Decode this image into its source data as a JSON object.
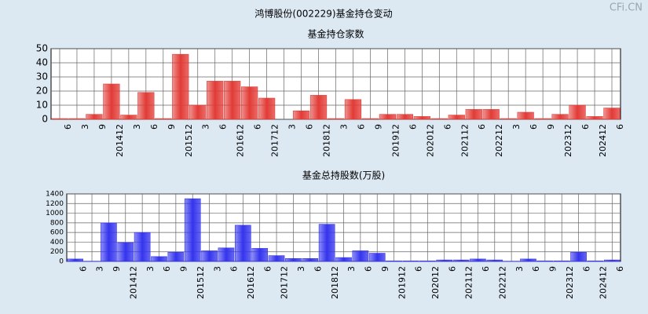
{
  "title": "鸿博股份(002229)基金持仓变动",
  "watermark": "CFi.CN",
  "chart_data": [
    {
      "type": "bar",
      "title": "基金持仓家数",
      "color": "#e23b36",
      "grid": true,
      "categories": [
        "6",
        "3",
        "9",
        "201412",
        "3",
        "6",
        "9",
        "201512",
        "3",
        "6",
        "201612",
        "6",
        "201712",
        "3",
        "6",
        "201812",
        "3",
        "6",
        "9",
        "201912",
        "6",
        "202012",
        "6",
        "202112",
        "6",
        "202212",
        "3",
        "6",
        "9",
        "202312",
        "6",
        "202412",
        "6"
      ],
      "values": [
        0.5,
        0.5,
        3.5,
        25,
        3,
        19,
        0.5,
        46,
        10,
        27,
        27,
        23,
        15,
        0,
        6,
        17,
        0.5,
        14,
        0.5,
        3.5,
        3.5,
        2,
        0.5,
        3,
        7,
        7,
        0.5,
        5,
        0.5,
        3.5,
        10,
        2,
        8
      ],
      "ylim": [
        0,
        50
      ],
      "yticks": [
        0,
        10,
        20,
        30,
        40,
        50
      ]
    },
    {
      "type": "bar",
      "title": "基金总持股数(万股)",
      "color": "#3434ee",
      "grid": true,
      "categories": [
        "6",
        "3",
        "9",
        "201412",
        "3",
        "6",
        "9",
        "201512",
        "3",
        "6",
        "201612",
        "6",
        "201712",
        "3",
        "6",
        "201812",
        "3",
        "6",
        "9",
        "201912",
        "6",
        "202012",
        "6",
        "202112",
        "6",
        "202212",
        "3",
        "6",
        "9",
        "202312",
        "6",
        "202412",
        "6"
      ],
      "values": [
        50,
        5,
        800,
        390,
        600,
        100,
        190,
        1300,
        220,
        280,
        750,
        270,
        120,
        60,
        60,
        770,
        80,
        220,
        170,
        10,
        10,
        10,
        30,
        30,
        50,
        30,
        5,
        50,
        10,
        10,
        190,
        10,
        30
      ],
      "ylim": [
        0,
        1400
      ],
      "yticks": [
        0,
        200,
        400,
        600,
        800,
        1000,
        1200,
        1400
      ]
    }
  ]
}
